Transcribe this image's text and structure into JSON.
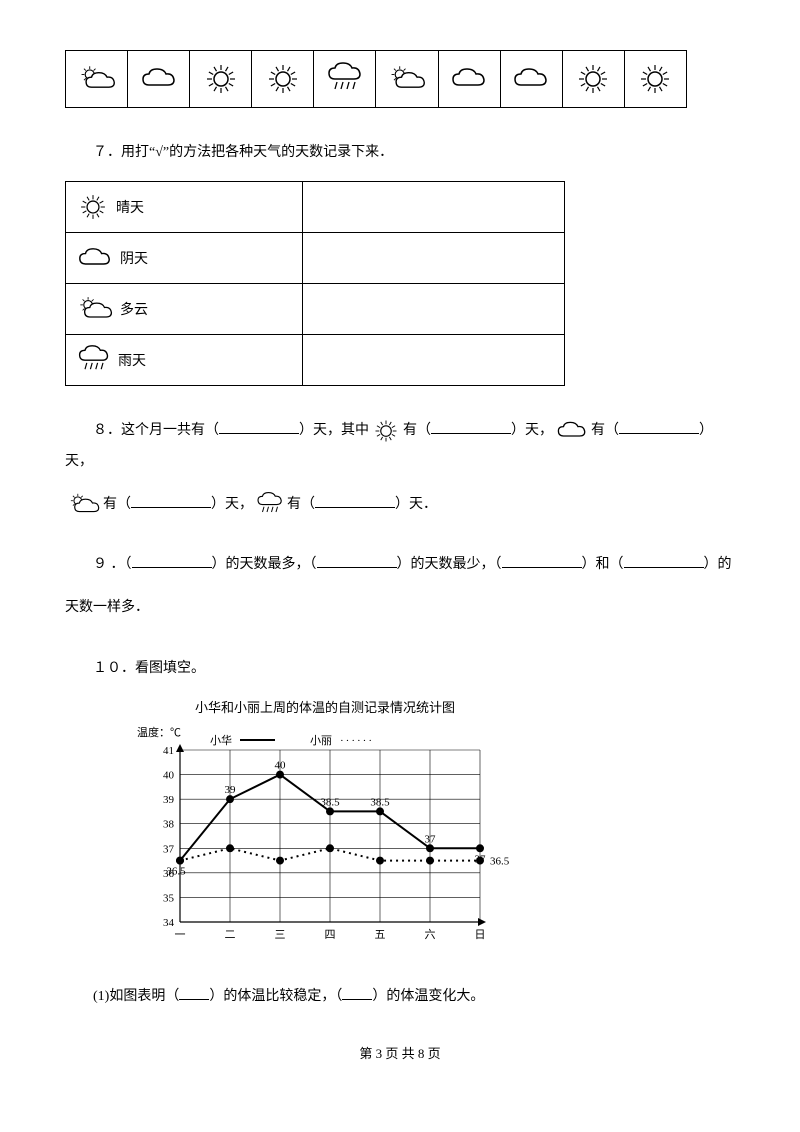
{
  "questions": {
    "q7": "７．用打“√”的方法把各种天气的天数记录下来．",
    "q8_parts": {
      "a": "８．这个月一共有（",
      "b": "）天，其中",
      "c": "有（",
      "d": "）天，",
      "e": "有（",
      "f": "）天，",
      "g": "有（",
      "h": "）天，",
      "i": "有（",
      "j": "）天．"
    },
    "q9_parts": {
      "a": "９ ．（",
      "b": "）的天数最多，（",
      "c": "）的天数最少，（",
      "d": "）和（",
      "e": "）的",
      "f": "天数一样多．"
    },
    "q10": "１０．看图填空。",
    "q10_1_parts": {
      "a": "(1)如图表明（",
      "b": "）的体温比较稳定，（",
      "c": "）的体温变化大。"
    }
  },
  "weather_labels": {
    "sunny": "晴天",
    "overcast": "阴天",
    "cloudy": "多云",
    "rainy": "雨天"
  },
  "chart": {
    "title": "小华和小丽上周的体温的自测记录情况统计图",
    "ylabel": "温度：℃",
    "legend": {
      "hua": "小华",
      "li": "小丽"
    },
    "ylim": [
      34,
      41
    ],
    "ytick_step": 1,
    "x_categories": [
      "一",
      "二",
      "三",
      "四",
      "五",
      "六",
      "日"
    ],
    "hua_values": [
      36.5,
      39,
      40,
      38.5,
      38.5,
      37,
      37
    ],
    "li_values": [
      36.5,
      37,
      36.5,
      37,
      36.5,
      36.5,
      36.5
    ],
    "li_end_label": "36.5",
    "colors": {
      "bg": "#ffffff",
      "grid": "#000000",
      "hua_line": "#000000",
      "li_line": "#000000",
      "marker": "#000000",
      "text": "#000000"
    },
    "line_width": 2,
    "marker_radius": 4,
    "font_size": 11
  },
  "footer": {
    "page": "第 3 页 共 8 页"
  }
}
